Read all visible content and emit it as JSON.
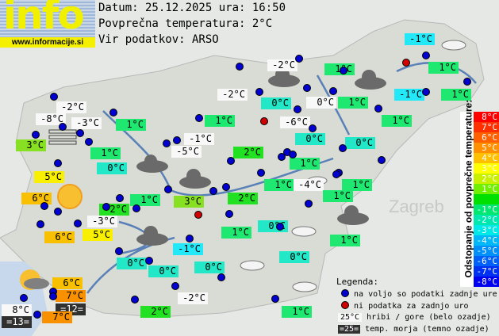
{
  "logo": {
    "text": "info",
    "url": "www.informacije.si"
  },
  "header": {
    "date_line": "Datum: 25.12.2025 ura: 16:50",
    "avg_line": "Povprečna temperatura: 2°C",
    "source_line": "Vir podatkov: ARSO"
  },
  "colors": {
    "station": "#0000d0",
    "no_data": "#d00000",
    "green1": "#1ee870",
    "green2": "#22e022",
    "ygreen3": "#88e022",
    "cyan0": "#22e8c8",
    "cyan_m1": "#22e8f8",
    "white": "#f8f8f8",
    "yellow5": "#f8f000",
    "orange6": "#f8c000",
    "orange7": "#f89000",
    "sea": "#303030"
  },
  "stations": [
    {
      "t": "-2°C",
      "c": "white"
    },
    {
      "t": "-8°C",
      "c": "white"
    },
    {
      "t": "-3°C",
      "c": "white"
    },
    {
      "t": "1°C",
      "c": "green1"
    },
    {
      "t": "3°C",
      "c": "ygreen3"
    },
    {
      "t": "1°C",
      "c": "green1"
    },
    {
      "t": "0°C",
      "c": "cyan0"
    },
    {
      "t": "1°C",
      "c": "green1"
    },
    {
      "t": "-1°C",
      "c": "white"
    },
    {
      "t": "-5°C",
      "c": "white"
    },
    {
      "t": "2°C",
      "c": "green2"
    },
    {
      "t": "-2°C",
      "c": "white"
    },
    {
      "t": "-2°C",
      "c": "white"
    },
    {
      "t": "1°C",
      "c": "green1"
    },
    {
      "t": "0°C",
      "c": "cyan0"
    },
    {
      "t": "0°C",
      "c": "white"
    },
    {
      "t": "1°C",
      "c": "green1"
    },
    {
      "t": "-1°C",
      "c": "cyan_m1"
    },
    {
      "t": "1°C",
      "c": "green1"
    },
    {
      "t": "-1°C",
      "c": "cyan_m1"
    },
    {
      "t": "1°C",
      "c": "green1"
    },
    {
      "t": "1°C",
      "c": "green1"
    },
    {
      "t": "-6°C",
      "c": "white"
    },
    {
      "t": "0°C",
      "c": "cyan0"
    },
    {
      "t": "0°C",
      "c": "cyan0"
    },
    {
      "t": "1°C",
      "c": "green1"
    },
    {
      "t": "5°C",
      "c": "yellow5"
    },
    {
      "t": "6°C",
      "c": "orange6"
    },
    {
      "t": "2°C",
      "c": "green2"
    },
    {
      "t": "1°C",
      "c": "green1"
    },
    {
      "t": "3°C",
      "c": "ygreen3"
    },
    {
      "t": "2°C",
      "c": "green2"
    },
    {
      "t": "-3°C",
      "c": "white"
    },
    {
      "t": "5°C",
      "c": "yellow5"
    },
    {
      "t": "6°C",
      "c": "orange6"
    },
    {
      "t": "1°C",
      "c": "green1"
    },
    {
      "t": "-1°C",
      "c": "cyan_m1"
    },
    {
      "t": "0°C",
      "c": "cyan0"
    },
    {
      "t": "0°C",
      "c": "cyan0"
    },
    {
      "t": "0°C",
      "c": "cyan0"
    },
    {
      "t": "6°C",
      "c": "orange6"
    },
    {
      "t": "7°C",
      "c": "orange7"
    },
    {
      "t": "=12=",
      "c": "sea"
    },
    {
      "t": "8°C",
      "c": "white"
    },
    {
      "t": "=13=",
      "c": "sea"
    },
    {
      "t": "7°C",
      "c": "orange7"
    },
    {
      "t": "-2°C",
      "c": "white"
    },
    {
      "t": "2°C",
      "c": "green2"
    },
    {
      "t": "1°C",
      "c": "green1"
    },
    {
      "t": "-4°C",
      "c": "white"
    },
    {
      "t": "1°C",
      "c": "green1"
    },
    {
      "t": "1°C",
      "c": "green1"
    },
    {
      "t": "0°C",
      "c": "cyan0"
    },
    {
      "t": "1°C",
      "c": "green1"
    },
    {
      "t": "0°C",
      "c": "cyan0"
    },
    {
      "t": "1°C",
      "c": "green1"
    }
  ],
  "scale": {
    "title": "Odstopanje od povprečne temperature:",
    "rows": [
      {
        "t": "8°C",
        "c": "#ff0000"
      },
      {
        "t": "7°C",
        "c": "#ff3000"
      },
      {
        "t": "6°C",
        "c": "#ff6000"
      },
      {
        "t": "5°C",
        "c": "#ff9000"
      },
      {
        "t": "4°C",
        "c": "#ffc000"
      },
      {
        "t": "3°C",
        "c": "#ffff00"
      },
      {
        "t": "2°C",
        "c": "#c8f000"
      },
      {
        "t": "1°C",
        "c": "#70f000"
      },
      {
        "t": "",
        "c": "#00e000"
      },
      {
        "t": "-1°C",
        "c": "#00e870"
      },
      {
        "t": "-2°C",
        "c": "#00e8b0"
      },
      {
        "t": "-3°C",
        "c": "#00e8e8"
      },
      {
        "t": "-4°C",
        "c": "#00b8f8"
      },
      {
        "t": "-5°C",
        "c": "#0090f8"
      },
      {
        "t": "-6°C",
        "c": "#0060f8"
      },
      {
        "t": "-7°C",
        "c": "#0030f0"
      },
      {
        "t": "-8°C",
        "c": "#0000f0"
      }
    ]
  },
  "legend": {
    "title": "Legenda:",
    "blue_dot": "na voljo so podatki zadnje ure",
    "red_dot": "ni podatka za zadnjo uro",
    "mountain_sample": "25°C",
    "mountain_text": "hribi / gore (belo ozadje)",
    "sea_sample": "=25=",
    "sea_text": "temp. morja (temno ozadje)"
  },
  "map_text": {
    "zagreb": "Zagreb"
  }
}
